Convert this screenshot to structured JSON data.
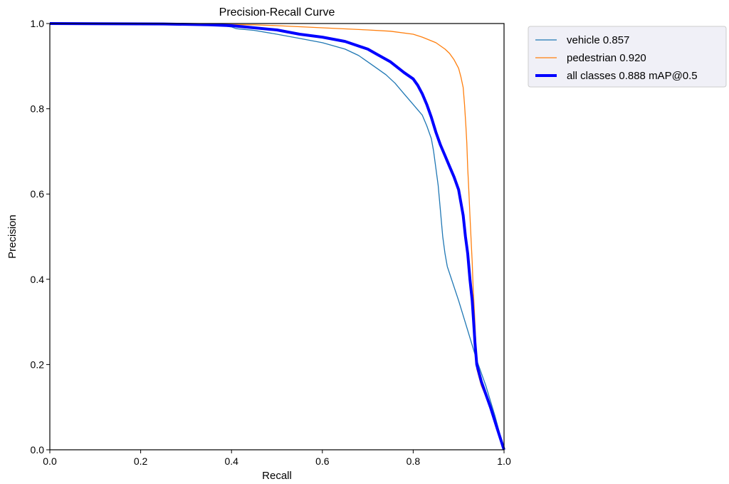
{
  "chart_data": {
    "type": "line",
    "title": "Precision-Recall Curve",
    "xlabel": "Recall",
    "ylabel": "Precision",
    "xlim": [
      0,
      1
    ],
    "ylim": [
      0,
      1
    ],
    "grid": false,
    "legend_position": "outside-top-right",
    "x_ticks": [
      "0.0",
      "0.2",
      "0.4",
      "0.6",
      "0.8",
      "1.0"
    ],
    "y_ticks": [
      "0.0",
      "0.2",
      "0.4",
      "0.6",
      "0.8",
      "1.0"
    ],
    "series": [
      {
        "name": "vehicle 0.857",
        "color": "#1f77b4",
        "points": [
          [
            0.0,
            1.0
          ],
          [
            0.2,
            0.999
          ],
          [
            0.3,
            0.998
          ],
          [
            0.38,
            0.995
          ],
          [
            0.4,
            0.992
          ],
          [
            0.41,
            0.988
          ],
          [
            0.45,
            0.984
          ],
          [
            0.5,
            0.975
          ],
          [
            0.55,
            0.965
          ],
          [
            0.6,
            0.955
          ],
          [
            0.65,
            0.94
          ],
          [
            0.68,
            0.925
          ],
          [
            0.7,
            0.91
          ],
          [
            0.72,
            0.895
          ],
          [
            0.74,
            0.88
          ],
          [
            0.76,
            0.86
          ],
          [
            0.78,
            0.835
          ],
          [
            0.8,
            0.81
          ],
          [
            0.82,
            0.785
          ],
          [
            0.83,
            0.76
          ],
          [
            0.84,
            0.73
          ],
          [
            0.845,
            0.7
          ],
          [
            0.85,
            0.66
          ],
          [
            0.855,
            0.62
          ],
          [
            0.86,
            0.56
          ],
          [
            0.865,
            0.5
          ],
          [
            0.87,
            0.46
          ],
          [
            0.875,
            0.43
          ],
          [
            0.9,
            0.35
          ],
          [
            0.92,
            0.28
          ],
          [
            0.94,
            0.21
          ],
          [
            0.96,
            0.15
          ],
          [
            0.98,
            0.08
          ],
          [
            1.0,
            0.0
          ]
        ]
      },
      {
        "name": "pedestrian 0.920",
        "color": "#ff7f0e",
        "points": [
          [
            0.0,
            1.0
          ],
          [
            0.3,
            0.999
          ],
          [
            0.45,
            0.997
          ],
          [
            0.5,
            0.995
          ],
          [
            0.6,
            0.99
          ],
          [
            0.7,
            0.985
          ],
          [
            0.75,
            0.982
          ],
          [
            0.8,
            0.975
          ],
          [
            0.82,
            0.968
          ],
          [
            0.85,
            0.955
          ],
          [
            0.87,
            0.94
          ],
          [
            0.88,
            0.93
          ],
          [
            0.89,
            0.915
          ],
          [
            0.9,
            0.895
          ],
          [
            0.905,
            0.875
          ],
          [
            0.91,
            0.85
          ],
          [
            0.913,
            0.81
          ],
          [
            0.916,
            0.76
          ],
          [
            0.918,
            0.72
          ],
          [
            0.92,
            0.66
          ],
          [
            0.922,
            0.62
          ],
          [
            0.925,
            0.55
          ],
          [
            0.928,
            0.48
          ],
          [
            0.93,
            0.44
          ],
          [
            0.932,
            0.38
          ],
          [
            0.935,
            0.32
          ],
          [
            0.938,
            0.25
          ],
          [
            0.94,
            0.19
          ],
          [
            0.95,
            0.15
          ],
          [
            0.97,
            0.1
          ],
          [
            0.985,
            0.05
          ],
          [
            1.0,
            0.0
          ]
        ]
      },
      {
        "name": "all classes 0.888 mAP@0.5",
        "color": "#0000ff",
        "points": [
          [
            0.0,
            1.0
          ],
          [
            0.25,
            0.999
          ],
          [
            0.35,
            0.997
          ],
          [
            0.4,
            0.995
          ],
          [
            0.45,
            0.99
          ],
          [
            0.5,
            0.985
          ],
          [
            0.55,
            0.975
          ],
          [
            0.6,
            0.968
          ],
          [
            0.65,
            0.958
          ],
          [
            0.7,
            0.94
          ],
          [
            0.72,
            0.928
          ],
          [
            0.75,
            0.91
          ],
          [
            0.78,
            0.885
          ],
          [
            0.8,
            0.87
          ],
          [
            0.81,
            0.855
          ],
          [
            0.82,
            0.835
          ],
          [
            0.83,
            0.81
          ],
          [
            0.84,
            0.78
          ],
          [
            0.85,
            0.745
          ],
          [
            0.86,
            0.715
          ],
          [
            0.87,
            0.69
          ],
          [
            0.88,
            0.665
          ],
          [
            0.89,
            0.64
          ],
          [
            0.9,
            0.61
          ],
          [
            0.905,
            0.58
          ],
          [
            0.91,
            0.55
          ],
          [
            0.915,
            0.5
          ],
          [
            0.92,
            0.46
          ],
          [
            0.925,
            0.4
          ],
          [
            0.93,
            0.35
          ],
          [
            0.933,
            0.3
          ],
          [
            0.936,
            0.25
          ],
          [
            0.94,
            0.2
          ],
          [
            0.95,
            0.16
          ],
          [
            0.97,
            0.1
          ],
          [
            0.985,
            0.05
          ],
          [
            1.0,
            0.0
          ]
        ]
      }
    ]
  }
}
